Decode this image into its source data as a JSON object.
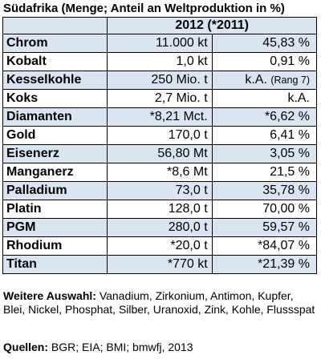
{
  "title": "Südafrika (Menge; Anteil an Weltproduktion in %)",
  "table": {
    "header": "2012 (*2011)",
    "rows": [
      {
        "name": "Chrom",
        "amount": "11.000 kt",
        "share": "45,83 %"
      },
      {
        "name": "Kobalt",
        "amount": "1,0 kt",
        "share": "0,91 %"
      },
      {
        "name": "Kesselkohle",
        "amount": "250 Mio. t",
        "share": "k.A.",
        "share_note": "(Rang 7)"
      },
      {
        "name": "Koks",
        "amount": "2,7 Mio. t",
        "share": "k.A."
      },
      {
        "name": "Diamanten",
        "amount": "*8,21 Mct.",
        "share": "*6,62 %"
      },
      {
        "name": "Gold",
        "amount": "170,0 t",
        "share": "6,41 %"
      },
      {
        "name": "Eisenerz",
        "amount": "56,80 Mt",
        "share": "3,05 %"
      },
      {
        "name": "Manganerz",
        "amount": "*8,6 Mt",
        "share": "21,5 %"
      },
      {
        "name": "Palladium",
        "amount": "73,0 t",
        "share": "35,78 %"
      },
      {
        "name": "Platin",
        "amount": "128,0 t",
        "share": "70,00 %"
      },
      {
        "name": "PGM",
        "amount": "280,0 t",
        "share": "59,57 %"
      },
      {
        "name": "Rhodium",
        "amount": "*20,0 t",
        "share": "*84,07 %"
      },
      {
        "name": "Titan",
        "amount": "*770 kt",
        "share": "*21,39 %"
      }
    ]
  },
  "notes": {
    "label": "Weitere Auswahl:",
    "text": "Vanadium, Zirkonium, Antimon, Kupfer, Blei, Nickel, Phosphat, Silber, Uranoxid, Zink, Kohle, Flussspat"
  },
  "sources": {
    "label": "Quellen:",
    "text": "BGR; EIA; BMI; bmwfj, 2013"
  },
  "colors": {
    "shaded_row": "#dbe5f1",
    "border": "#000000"
  }
}
